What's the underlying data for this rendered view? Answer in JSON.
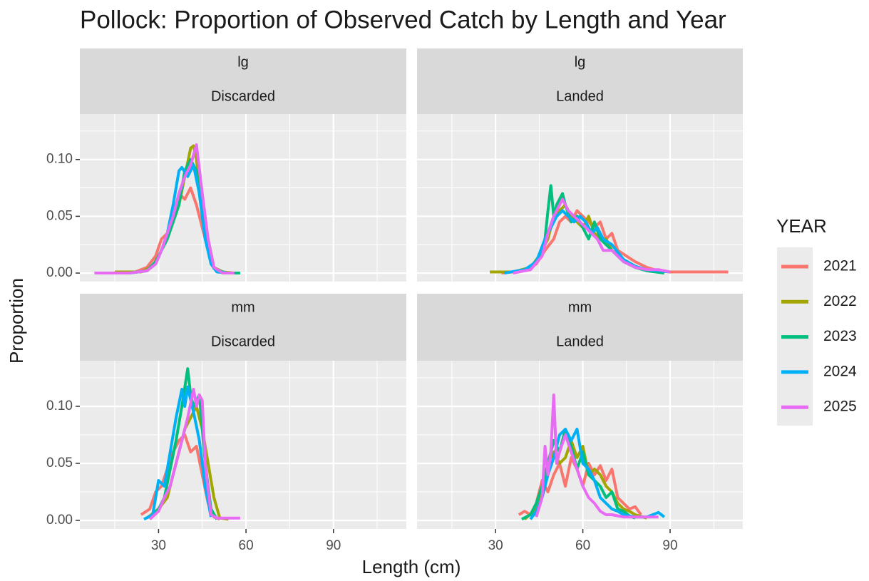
{
  "chart_data": {
    "type": "line",
    "title": "Pollock: Proportion of Observed Catch by Length and Year",
    "x_label": "Length (cm)",
    "y_label": "Proportion",
    "xlim": [
      3,
      115
    ],
    "ylim": [
      -0.0075,
      0.14
    ],
    "xticks": [
      30,
      60,
      90
    ],
    "xminor": [
      15,
      45,
      75,
      105
    ],
    "yticks": [
      {
        "value": 0,
        "label": "0.00"
      },
      {
        "value": 0.05,
        "label": "0.05"
      },
      {
        "value": 0.1,
        "label": "0.10"
      }
    ],
    "yminor": [
      0.025,
      0.075,
      0.125
    ],
    "grid": true,
    "legend": {
      "title": "YEAR",
      "position": "right",
      "series": [
        {
          "name": "2021",
          "color": "#F8766D"
        },
        {
          "name": "2022",
          "color": "#A3A500"
        },
        {
          "name": "2023",
          "color": "#00BF7D"
        },
        {
          "name": "2024",
          "color": "#00B0F6"
        },
        {
          "name": "2025",
          "color": "#E76BF3"
        }
      ]
    },
    "panels": [
      {
        "strip": [
          "lg",
          "Discarded"
        ],
        "series": [
          {
            "x": [
              15,
              22,
              26,
              29,
              31,
              33,
              35,
              37,
              39,
              41,
              43,
              45,
              47,
              49,
              52
            ],
            "values": [
              0,
              0.001,
              0.005,
              0.015,
              0.03,
              0.035,
              0.05,
              0.07,
              0.065,
              0.075,
              0.06,
              0.04,
              0.02,
              0.005,
              0
            ]
          },
          {
            "x": [
              15,
              24,
              28,
              31,
              33,
              35,
              37,
              39,
              41,
              42,
              43,
              45,
              47,
              49,
              52,
              56
            ],
            "values": [
              0.001,
              0.001,
              0.006,
              0.02,
              0.03,
              0.045,
              0.06,
              0.085,
              0.11,
              0.112,
              0.1,
              0.06,
              0.03,
              0.005,
              0.001,
              0
            ]
          },
          {
            "x": [
              20,
              26,
              29,
              31,
              33,
              35,
              37,
              39,
              41,
              43,
              45,
              47,
              49,
              53,
              58
            ],
            "values": [
              0,
              0.002,
              0.01,
              0.02,
              0.03,
              0.045,
              0.06,
              0.09,
              0.1,
              0.09,
              0.05,
              0.02,
              0.004,
              0,
              0
            ]
          },
          {
            "x": [
              8,
              20,
              26,
              29,
              31,
              33,
              35,
              37,
              38,
              40,
              42,
              44,
              46,
              48,
              50,
              54
            ],
            "values": [
              0,
              0,
              0.002,
              0.008,
              0.02,
              0.035,
              0.06,
              0.09,
              0.093,
              0.085,
              0.095,
              0.07,
              0.03,
              0.008,
              0.001,
              0
            ]
          },
          {
            "x": [
              8,
              20,
              26,
              29,
              31,
              33,
              35,
              37,
              39,
              41,
              43,
              45,
              47,
              49,
              52,
              56
            ],
            "values": [
              0,
              0,
              0.002,
              0.008,
              0.02,
              0.035,
              0.05,
              0.07,
              0.085,
              0.095,
              0.113,
              0.07,
              0.03,
              0.005,
              0,
              0
            ]
          }
        ]
      },
      {
        "strip": [
          "lg",
          "Landed"
        ],
        "series": [
          {
            "x": [
              32,
              40,
              44,
              47,
              50,
              52,
              54,
              56,
              58,
              60,
              62,
              64,
              66,
              68,
              70,
              72,
              75,
              78,
              82,
              86,
              90,
              100,
              110
            ],
            "values": [
              0,
              0.002,
              0.008,
              0.02,
              0.03,
              0.045,
              0.05,
              0.045,
              0.055,
              0.05,
              0.045,
              0.04,
              0.045,
              0.03,
              0.035,
              0.02,
              0.015,
              0.01,
              0.005,
              0.002,
              0.001,
              0.001,
              0.001
            ]
          },
          {
            "x": [
              28,
              36,
              42,
              45,
              48,
              50,
              52,
              54,
              56,
              58,
              60,
              62,
              64,
              66,
              68,
              70,
              74,
              78,
              82,
              86
            ],
            "values": [
              0.001,
              0.001,
              0.005,
              0.015,
              0.03,
              0.05,
              0.055,
              0.06,
              0.05,
              0.045,
              0.04,
              0.05,
              0.035,
              0.03,
              0.03,
              0.02,
              0.012,
              0.006,
              0.002,
              0.001
            ]
          },
          {
            "x": [
              36,
              42,
              45,
              47,
              48,
              49,
              50,
              51,
              53,
              54,
              56,
              58,
              60,
              62,
              64,
              66,
              68,
              70,
              74,
              78,
              82,
              88
            ],
            "values": [
              0.001,
              0.004,
              0.015,
              0.03,
              0.055,
              0.077,
              0.05,
              0.06,
              0.07,
              0.06,
              0.045,
              0.05,
              0.04,
              0.03,
              0.045,
              0.03,
              0.025,
              0.02,
              0.01,
              0.005,
              0.002,
              0
            ]
          },
          {
            "x": [
              33,
              40,
              44,
              47,
              49,
              51,
              53,
              55,
              57,
              59,
              61,
              63,
              65,
              67,
              70,
              74,
              78,
              82,
              86,
              90
            ],
            "values": [
              0,
              0.003,
              0.01,
              0.03,
              0.04,
              0.05,
              0.055,
              0.05,
              0.045,
              0.05,
              0.045,
              0.035,
              0.04,
              0.03,
              0.025,
              0.012,
              0.006,
              0.003,
              0.002,
              0.001
            ]
          },
          {
            "x": [
              36,
              42,
              46,
              48,
              50,
              52,
              53,
              55,
              57,
              59,
              61,
              63,
              65,
              67,
              70,
              74,
              78,
              82,
              86,
              90
            ],
            "values": [
              0,
              0.003,
              0.015,
              0.035,
              0.05,
              0.06,
              0.065,
              0.055,
              0.05,
              0.045,
              0.04,
              0.035,
              0.03,
              0.02,
              0.02,
              0.01,
              0.005,
              0.003,
              0.003,
              0.001
            ]
          }
        ]
      },
      {
        "strip": [
          "mm",
          "Discarded"
        ],
        "series": [
          {
            "x": [
              24,
              27,
              29,
              31,
              33,
              35,
              37,
              39,
              41,
              43,
              45,
              47,
              49,
              51
            ],
            "values": [
              0.005,
              0.01,
              0.025,
              0.03,
              0.045,
              0.06,
              0.07,
              0.075,
              0.06,
              0.065,
              0.04,
              0.015,
              0.003,
              0.001
            ]
          },
          {
            "x": [
              26,
              30,
              33,
              35,
              37,
              39,
              41,
              43,
              45,
              47,
              49,
              51,
              54
            ],
            "values": [
              0.002,
              0.01,
              0.02,
              0.04,
              0.06,
              0.08,
              0.09,
              0.1,
              0.08,
              0.05,
              0.02,
              0.002,
              0.001
            ]
          },
          {
            "x": [
              27,
              30,
              32,
              34,
              36,
              38,
              40,
              41,
              42,
              44,
              46,
              48,
              50
            ],
            "values": [
              0.002,
              0.01,
              0.02,
              0.045,
              0.07,
              0.1,
              0.133,
              0.11,
              0.1,
              0.11,
              0.05,
              0.01,
              0.001
            ]
          },
          {
            "x": [
              25,
              28,
              30,
              32,
              34,
              36,
              38,
              39,
              40,
              42,
              44,
              46,
              48
            ],
            "values": [
              0.001,
              0.005,
              0.035,
              0.03,
              0.06,
              0.09,
              0.115,
              0.1,
              0.117,
              0.095,
              0.07,
              0.03,
              0.003
            ]
          },
          {
            "x": [
              27,
              30,
              32,
              34,
              36,
              38,
              40,
              42,
              43,
              44,
              45,
              46,
              48,
              50,
              58
            ],
            "values": [
              0.001,
              0.008,
              0.02,
              0.03,
              0.05,
              0.07,
              0.09,
              0.115,
              0.1,
              0.11,
              0.105,
              0.05,
              0.005,
              0.002,
              0.002
            ]
          }
        ]
      },
      {
        "strip": [
          "mm",
          "Landed"
        ],
        "series": [
          {
            "x": [
              38,
              40,
              42,
              44,
              46,
              48,
              50,
              52,
              54,
              56,
              58,
              60,
              62,
              64,
              66,
              68,
              70,
              72,
              74,
              76,
              78,
              80
            ],
            "values": [
              0.005,
              0.008,
              0.005,
              0.015,
              0.035,
              0.025,
              0.04,
              0.05,
              0.03,
              0.055,
              0.045,
              0.03,
              0.05,
              0.04,
              0.048,
              0.035,
              0.045,
              0.02,
              0.015,
              0.01,
              0.012,
              0.005
            ]
          },
          {
            "x": [
              40,
              44,
              46,
              48,
              50,
              52,
              54,
              56,
              58,
              60,
              62,
              64,
              66,
              68,
              70,
              72,
              74,
              76,
              78,
              82
            ],
            "values": [
              0.001,
              0.01,
              0.025,
              0.05,
              0.06,
              0.05,
              0.055,
              0.07,
              0.055,
              0.065,
              0.04,
              0.045,
              0.04,
              0.03,
              0.025,
              0.015,
              0.01,
              0.008,
              0.005,
              0.002
            ]
          },
          {
            "x": [
              39,
              42,
              44,
              46,
              48,
              50,
              52,
              54,
              56,
              58,
              60,
              62,
              64,
              66,
              68,
              70,
              72,
              74,
              76,
              78
            ],
            "values": [
              0.001,
              0.005,
              0.015,
              0.03,
              0.05,
              0.07,
              0.06,
              0.08,
              0.065,
              0.045,
              0.06,
              0.04,
              0.035,
              0.03,
              0.02,
              0.025,
              0.01,
              0.008,
              0.004,
              0.002
            ]
          },
          {
            "x": [
              42,
              44,
              46,
              48,
              50,
              52,
              54,
              56,
              58,
              60,
              62,
              64,
              66,
              68,
              70,
              72,
              74,
              78,
              82,
              86,
              88
            ],
            "values": [
              0.001,
              0.008,
              0.02,
              0.04,
              0.055,
              0.075,
              0.08,
              0.07,
              0.08,
              0.05,
              0.045,
              0.035,
              0.02,
              0.015,
              0.01,
              0.008,
              0.005,
              0.003,
              0.003,
              0.007,
              0.003
            ]
          },
          {
            "x": [
              44,
              46,
              47,
              48,
              49,
              50,
              51,
              52,
              54,
              56,
              58,
              60,
              62,
              64,
              66,
              68,
              70,
              74,
              78,
              82,
              86
            ],
            "values": [
              0.003,
              0.02,
              0.065,
              0.04,
              0.06,
              0.11,
              0.05,
              0.06,
              0.075,
              0.06,
              0.045,
              0.03,
              0.02,
              0.015,
              0.008,
              0.005,
              0.005,
              0.003,
              0.003,
              0.003,
              0.003
            ]
          }
        ]
      }
    ]
  }
}
